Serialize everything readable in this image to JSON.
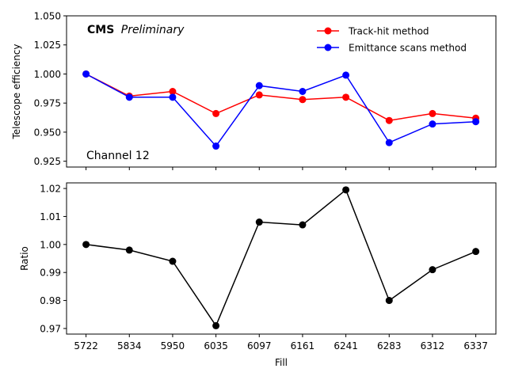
{
  "chart_data": [
    {
      "type": "line",
      "title": "",
      "annotation_bold": "CMS",
      "annotation_italic": "Preliminary",
      "channel_label": "Channel 12",
      "xlabel": "",
      "ylabel": "Telescope efficiency",
      "categories": [
        "5722",
        "5834",
        "5950",
        "6035",
        "6097",
        "6161",
        "6241",
        "6283",
        "6312",
        "6337"
      ],
      "ylim": [
        0.92,
        1.05
      ],
      "yticks": [
        "0.925",
        "0.950",
        "0.975",
        "1.000",
        "1.025",
        "1.050"
      ],
      "ytick_values": [
        0.925,
        0.95,
        0.975,
        1.0,
        1.025,
        1.05
      ],
      "legend_position": "top-right",
      "grid": false,
      "series": [
        {
          "name": "Track-hit method",
          "color": "#ff0000",
          "values": [
            1.0,
            0.981,
            0.985,
            0.966,
            0.982,
            0.978,
            0.98,
            0.96,
            0.966,
            0.962
          ]
        },
        {
          "name": "Emittance scans method",
          "color": "#0000ff",
          "values": [
            1.0,
            0.98,
            0.98,
            0.938,
            0.99,
            0.985,
            0.999,
            0.941,
            0.957,
            0.959
          ]
        }
      ]
    },
    {
      "type": "line",
      "title": "",
      "xlabel": "Fill",
      "ylabel": "Ratio",
      "categories": [
        "5722",
        "5834",
        "5950",
        "6035",
        "6097",
        "6161",
        "6241",
        "6283",
        "6312",
        "6337"
      ],
      "ylim": [
        0.968,
        1.022
      ],
      "yticks": [
        "0.97",
        "0.98",
        "0.99",
        "1.00",
        "1.01",
        "1.02"
      ],
      "ytick_values": [
        0.97,
        0.98,
        0.99,
        1.0,
        1.01,
        1.02
      ],
      "grid": false,
      "series": [
        {
          "name": "",
          "color": "#000000",
          "values": [
            1.0,
            0.998,
            0.994,
            0.971,
            1.008,
            1.007,
            1.0195,
            0.98,
            0.991,
            0.9975
          ]
        }
      ]
    }
  ]
}
